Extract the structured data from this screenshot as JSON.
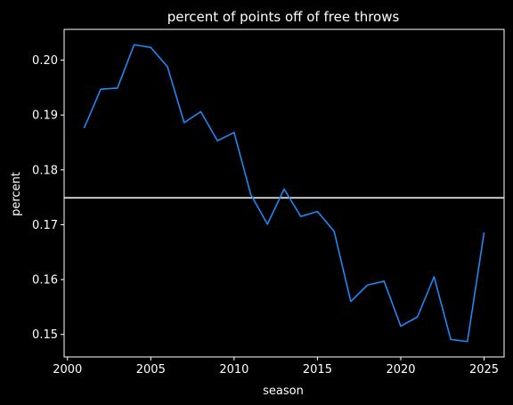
{
  "chart_data": {
    "type": "line",
    "title": "percent of points off of free throws",
    "xlabel": "season",
    "ylabel": "percent",
    "xlim": [
      1999.8,
      2026.2
    ],
    "ylim": [
      0.1459,
      0.2056
    ],
    "xticks": [
      2000,
      2005,
      2010,
      2015,
      2020,
      2025
    ],
    "yticks": [
      0.15,
      0.16,
      0.17,
      0.18,
      0.19,
      0.2
    ],
    "xtick_labels": [
      "2000",
      "2005",
      "2010",
      "2015",
      "2020",
      "2025"
    ],
    "ytick_labels": [
      "0.15",
      "0.16",
      "0.17",
      "0.18",
      "0.19",
      "0.20"
    ],
    "grid": false,
    "background": "#000000",
    "foreground": "#ffffff",
    "series": [
      {
        "color": "#1e88f5",
        "x": [
          2001,
          2002,
          2003,
          2004,
          2005,
          2006,
          2007,
          2008,
          2009,
          2010,
          2011,
          2012,
          2013,
          2014,
          2015,
          2016,
          2017,
          2018,
          2019,
          2020,
          2021,
          2022,
          2023,
          2024,
          2025
        ],
        "values": [
          0.1876,
          0.1947,
          0.1949,
          0.2028,
          0.2023,
          0.1988,
          0.1886,
          0.1906,
          0.1853,
          0.1868,
          0.1755,
          0.1701,
          0.1765,
          0.1715,
          0.1724,
          0.1688,
          0.156,
          0.159,
          0.1597,
          0.1515,
          0.1532,
          0.1605,
          0.1491,
          0.1487,
          0.1686
        ]
      }
    ],
    "hlines": [
      {
        "y": 0.1749,
        "color": "#ffffff"
      }
    ]
  }
}
